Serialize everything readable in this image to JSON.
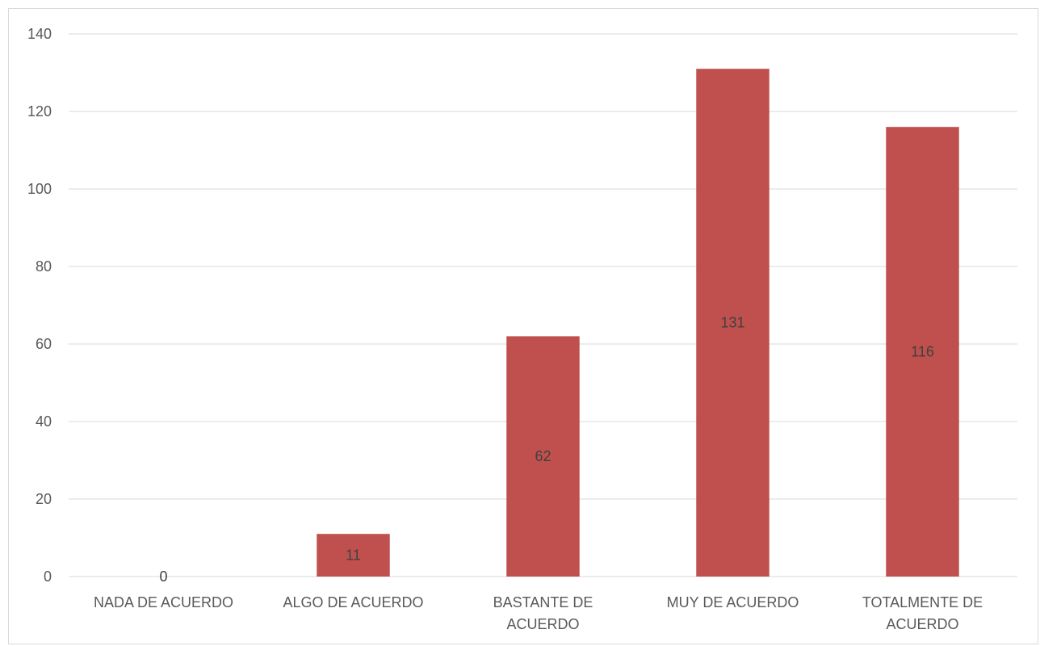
{
  "chart_data": {
    "type": "bar",
    "categories": [
      [
        "NADA DE ACUERDO"
      ],
      [
        "ALGO DE ACUERDO"
      ],
      [
        "BASTANTE DE",
        "ACUERDO"
      ],
      [
        "MUY DE ACUERDO"
      ],
      [
        "TOTALMENTE DE",
        "ACUERDO"
      ]
    ],
    "values": [
      0,
      11,
      62,
      131,
      116
    ],
    "data_labels": [
      "0",
      "11",
      "62",
      "131",
      "116"
    ],
    "title": "",
    "xlabel": "",
    "ylabel": "",
    "ylim": [
      0,
      140
    ],
    "yticks": [
      0,
      20,
      40,
      60,
      80,
      100,
      120,
      140
    ],
    "grid": true,
    "legend": "none",
    "bar_color": "#c0504d"
  }
}
